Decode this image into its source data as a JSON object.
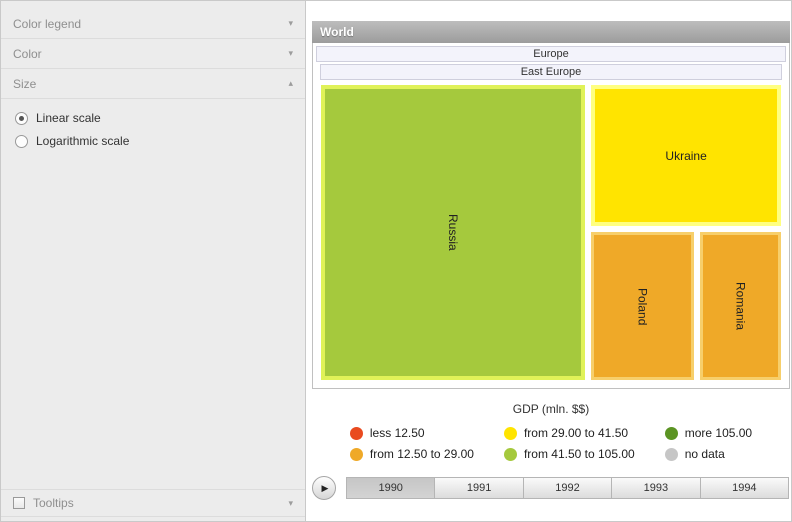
{
  "icons": {
    "chevron_down": "▾",
    "chevron_up": "▴",
    "play": "▶"
  },
  "sidebar": {
    "panels": [
      {
        "label": "Color legend",
        "state": "collapsed"
      },
      {
        "label": "Color",
        "state": "collapsed"
      },
      {
        "label": "Size",
        "state": "expanded"
      }
    ],
    "size_options": [
      {
        "label": "Linear scale",
        "selected": true
      },
      {
        "label": "Logarithmic scale",
        "selected": false
      }
    ],
    "tooltips_label": "Tooltips"
  },
  "treemap": {
    "root_label": "World",
    "region": "Europe",
    "subregion": "East Europe",
    "cells": [
      {
        "name": "Russia",
        "fill": "#a5c93d",
        "border": "#e0f258"
      },
      {
        "name": "Ukraine",
        "fill": "#ffe400",
        "border": "#ffff80"
      },
      {
        "name": "Poland",
        "fill": "#efa928",
        "border": "#f7cf6b"
      },
      {
        "name": "Romania",
        "fill": "#efa928",
        "border": "#f7cf6b"
      }
    ]
  },
  "legend": {
    "title": "GDP (mln. $$)",
    "items": [
      {
        "label": "less 12.50",
        "color": "#e94a1f"
      },
      {
        "label": "from 29.00 to 41.50",
        "color": "#ffe400"
      },
      {
        "label": "more 105.00",
        "color": "#5b9423"
      },
      {
        "label": "from 12.50 to 29.00",
        "color": "#efa928"
      },
      {
        "label": "from 41.50 to 105.00",
        "color": "#a5c93d"
      },
      {
        "label": "no data",
        "color": "#c6c6c6"
      }
    ]
  },
  "timeline": {
    "years": [
      "1990",
      "1991",
      "1992",
      "1993",
      "1994"
    ],
    "selected_year": "1990"
  },
  "chart_data": {
    "type": "treemap",
    "title": "World",
    "hierarchy": [
      "World",
      "Europe",
      "East Europe"
    ],
    "leaves": [
      {
        "name": "Russia",
        "color_bin": "from 41.50 to 105.00",
        "approx_area_fraction": 0.56
      },
      {
        "name": "Ukraine",
        "color_bin": "from 29.00 to 41.50",
        "approx_area_fraction": 0.2
      },
      {
        "name": "Poland",
        "color_bin": "from 12.50 to 29.00",
        "approx_area_fraction": 0.13
      },
      {
        "name": "Romania",
        "color_bin": "from 12.50 to 29.00",
        "approx_area_fraction": 0.11
      }
    ],
    "legend_title": "GDP (mln. $$)",
    "legend_bins": [
      "less 12.50",
      "from 12.50 to 29.00",
      "from 29.00 to 41.50",
      "from 41.50 to 105.00",
      "more 105.00",
      "no data"
    ],
    "current_year": "1990"
  }
}
